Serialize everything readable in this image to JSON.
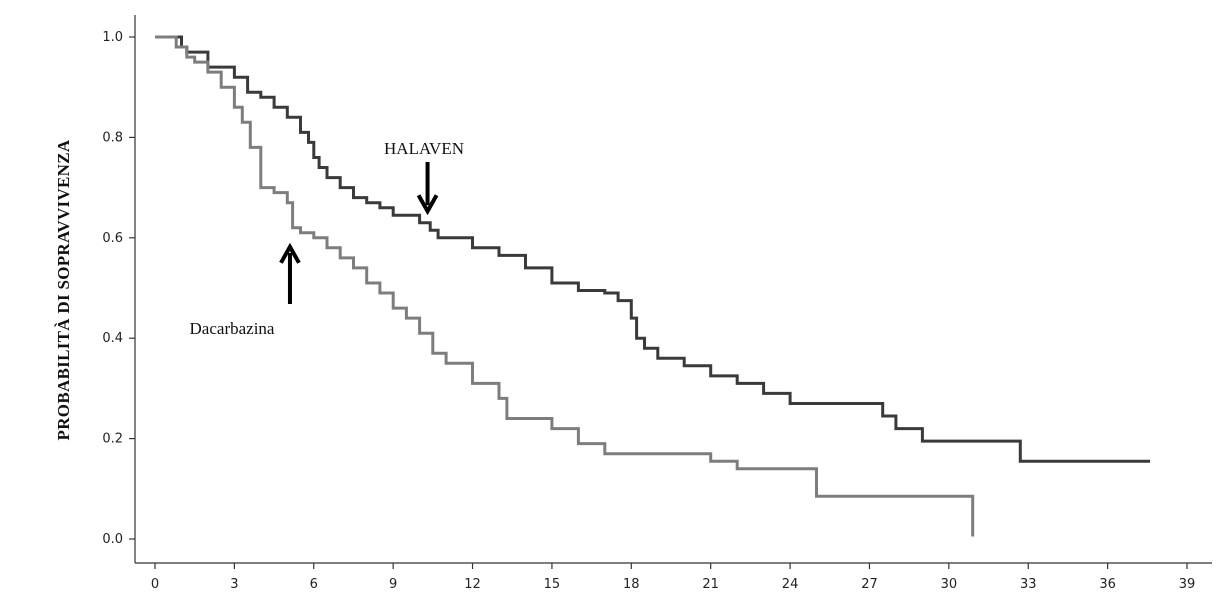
{
  "chart_data": {
    "type": "line",
    "title": "",
    "xlabel": "",
    "ylabel": "PROBABILITÀ DI SOPRAVVIVENZA",
    "xlim": [
      0,
      39
    ],
    "ylim": [
      0,
      1
    ],
    "x_ticks": [
      0,
      3,
      6,
      9,
      12,
      15,
      18,
      21,
      24,
      27,
      30,
      33,
      36,
      39
    ],
    "y_ticks": [
      0.0,
      0.2,
      0.4,
      0.6,
      0.8,
      1.0
    ],
    "x_tick_labels": [
      "0",
      "3",
      "6",
      "9",
      "12",
      "15",
      "18",
      "21",
      "24",
      "27",
      "30",
      "33",
      "36",
      "39"
    ],
    "y_tick_labels": [
      "0.0",
      "0.2",
      "0.4",
      "0.6",
      "0.8",
      "1.0"
    ],
    "grid": false,
    "legend": "none",
    "series": [
      {
        "name": "HALAVEN",
        "color": "#3a3a3a",
        "step": true,
        "x": [
          0,
          0.8,
          1.0,
          1.2,
          2.0,
          3.0,
          3.5,
          4.0,
          4.5,
          5.0,
          5.5,
          5.8,
          6.0,
          6.2,
          6.5,
          7.0,
          7.5,
          8.0,
          8.5,
          9.0,
          10.0,
          10.4,
          10.7,
          12.0,
          13.0,
          14.0,
          15.0,
          16.0,
          17.0,
          17.5,
          18.0,
          18.2,
          18.5,
          19.0,
          20.0,
          21.0,
          22.0,
          23.0,
          24.0,
          26.0,
          27.0,
          27.5,
          28.0,
          29.0,
          30.0,
          32.0,
          32.7,
          35.0,
          37.6
        ],
        "y": [
          1.0,
          1.0,
          0.98,
          0.97,
          0.94,
          0.92,
          0.89,
          0.88,
          0.86,
          0.84,
          0.81,
          0.79,
          0.76,
          0.74,
          0.72,
          0.7,
          0.68,
          0.67,
          0.66,
          0.645,
          0.63,
          0.615,
          0.6,
          0.58,
          0.565,
          0.54,
          0.51,
          0.495,
          0.49,
          0.475,
          0.44,
          0.4,
          0.38,
          0.36,
          0.345,
          0.325,
          0.31,
          0.29,
          0.27,
          0.27,
          0.27,
          0.245,
          0.22,
          0.195,
          0.195,
          0.195,
          0.155,
          0.155,
          0.155
        ]
      },
      {
        "name": "Dacarbazina",
        "color": "#7d7d7d",
        "step": true,
        "x": [
          0,
          0.5,
          0.8,
          1.2,
          1.5,
          2.0,
          2.5,
          3.0,
          3.3,
          3.6,
          4.0,
          4.5,
          5.0,
          5.2,
          5.5,
          6.0,
          6.5,
          7.0,
          7.5,
          8.0,
          8.5,
          9.0,
          9.5,
          10.0,
          10.5,
          11.0,
          12.0,
          13.0,
          13.3,
          15.0,
          16.0,
          17.0,
          18.0,
          19.0,
          21.0,
          22.0,
          23.0,
          25.0,
          27.0,
          29.0,
          30.9,
          30.9
        ],
        "y": [
          1.0,
          1.0,
          0.98,
          0.96,
          0.95,
          0.93,
          0.9,
          0.86,
          0.83,
          0.78,
          0.7,
          0.69,
          0.67,
          0.62,
          0.61,
          0.6,
          0.58,
          0.56,
          0.54,
          0.51,
          0.49,
          0.46,
          0.44,
          0.41,
          0.37,
          0.35,
          0.31,
          0.28,
          0.24,
          0.22,
          0.19,
          0.17,
          0.17,
          0.17,
          0.155,
          0.14,
          0.14,
          0.085,
          0.085,
          0.085,
          0.085,
          0.005
        ]
      }
    ],
    "annotations": [
      {
        "text": "HALAVEN",
        "arrow": "down",
        "x": 10.3,
        "y": 0.645
      },
      {
        "text": "Dacarbazina",
        "arrow": "up",
        "x": 5.1,
        "y": 0.59
      }
    ]
  }
}
